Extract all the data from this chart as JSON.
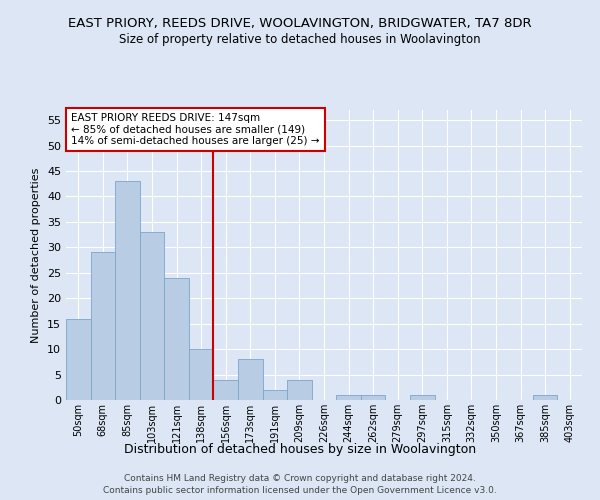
{
  "title": "EAST PRIORY, REEDS DRIVE, WOOLAVINGTON, BRIDGWATER, TA7 8DR",
  "subtitle": "Size of property relative to detached houses in Woolavington",
  "xlabel": "Distribution of detached houses by size in Woolavington",
  "ylabel": "Number of detached properties",
  "categories": [
    "50sqm",
    "68sqm",
    "85sqm",
    "103sqm",
    "121sqm",
    "138sqm",
    "156sqm",
    "173sqm",
    "191sqm",
    "209sqm",
    "226sqm",
    "244sqm",
    "262sqm",
    "279sqm",
    "297sqm",
    "315sqm",
    "332sqm",
    "350sqm",
    "367sqm",
    "385sqm",
    "403sqm"
  ],
  "values": [
    16,
    29,
    43,
    33,
    24,
    10,
    4,
    8,
    2,
    4,
    0,
    1,
    1,
    0,
    1,
    0,
    0,
    0,
    0,
    1,
    0
  ],
  "bar_color": "#b8cce4",
  "bar_edge_color": "#7aa6cc",
  "ylim": [
    0,
    57
  ],
  "yticks": [
    0,
    5,
    10,
    15,
    20,
    25,
    30,
    35,
    40,
    45,
    50,
    55
  ],
  "property_line_x": 5.5,
  "annotation_text": "EAST PRIORY REEDS DRIVE: 147sqm\n← 85% of detached houses are smaller (149)\n14% of semi-detached houses are larger (25) →",
  "footer_line1": "Contains HM Land Registry data © Crown copyright and database right 2024.",
  "footer_line2": "Contains public sector information licensed under the Open Government Licence v3.0.",
  "background_color": "#dce6f5",
  "plot_bg_color": "#dce6f5",
  "grid_color": "#ffffff",
  "title_fontsize": 9.5,
  "subtitle_fontsize": 8.5,
  "ylabel_fontsize": 8,
  "xlabel_fontsize": 9,
  "tick_fontsize": 7,
  "annotation_fontsize": 7.5,
  "annotation_box_color": "#ffffff",
  "annotation_border_color": "#cc0000",
  "vline_color": "#cc0000",
  "footer_fontsize": 6.5,
  "footer_color": "#444444"
}
